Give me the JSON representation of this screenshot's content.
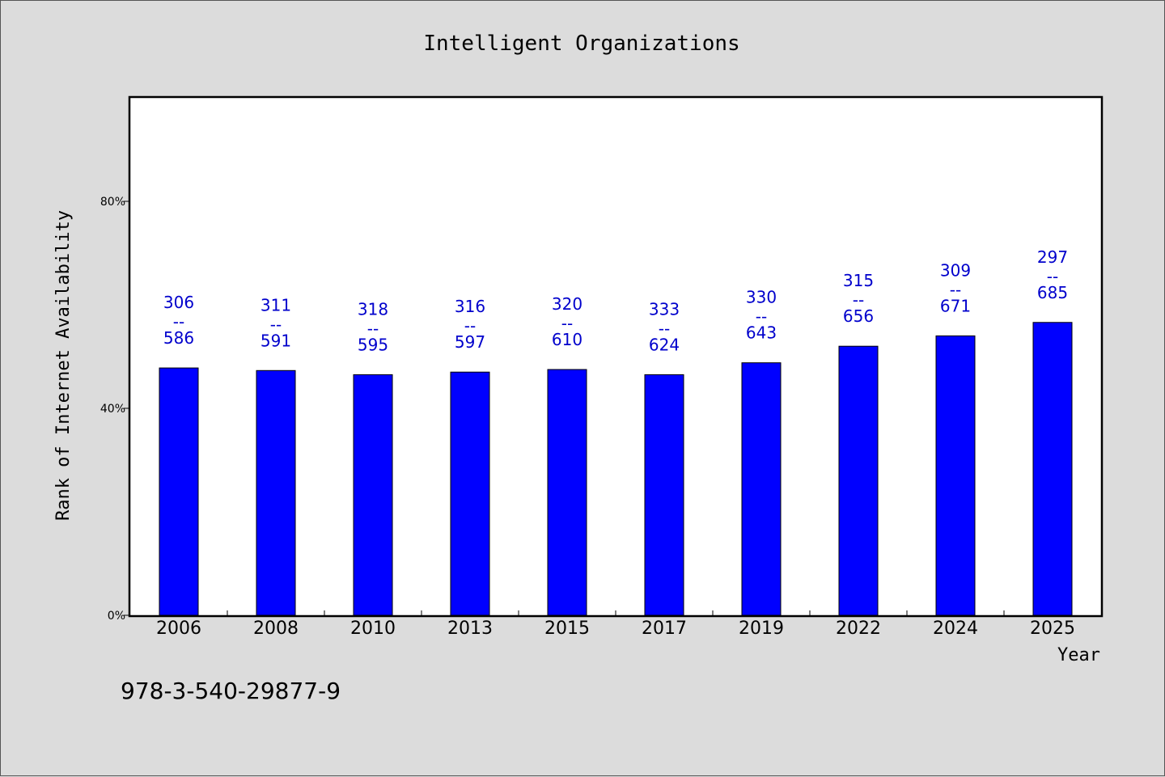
{
  "chart_data": {
    "type": "bar",
    "title": "Intelligent Organizations",
    "xlabel": "Year",
    "ylabel": "Rank of Internet Availability",
    "categories": [
      "2006",
      "2008",
      "2010",
      "2013",
      "2015",
      "2017",
      "2019",
      "2022",
      "2024",
      "2025"
    ],
    "values": [
      47.8,
      47.3,
      46.5,
      47.0,
      47.5,
      46.5,
      48.8,
      52.0,
      54.0,
      56.6
    ],
    "value_labels": [
      {
        "top": "306",
        "sep": "--",
        "bottom": "586"
      },
      {
        "top": "311",
        "sep": "--",
        "bottom": "591"
      },
      {
        "top": "318",
        "sep": "--",
        "bottom": "595"
      },
      {
        "top": "316",
        "sep": "--",
        "bottom": "597"
      },
      {
        "top": "320",
        "sep": "--",
        "bottom": "610"
      },
      {
        "top": "333",
        "sep": "--",
        "bottom": "624"
      },
      {
        "top": "330",
        "sep": "--",
        "bottom": "643"
      },
      {
        "top": "315",
        "sep": "--",
        "bottom": "656"
      },
      {
        "top": "309",
        "sep": "--",
        "bottom": "671"
      },
      {
        "top": "297",
        "sep": "--",
        "bottom": "685"
      }
    ],
    "yticks": [
      0,
      40,
      80
    ],
    "ytick_labels": [
      "0%",
      "40%",
      "80%"
    ],
    "ylim": [
      0,
      100
    ],
    "grid": false,
    "bar_color": "#0000ff",
    "label_color": "#0000cc"
  },
  "footer": {
    "isbn": "978-3-540-29877-9"
  }
}
